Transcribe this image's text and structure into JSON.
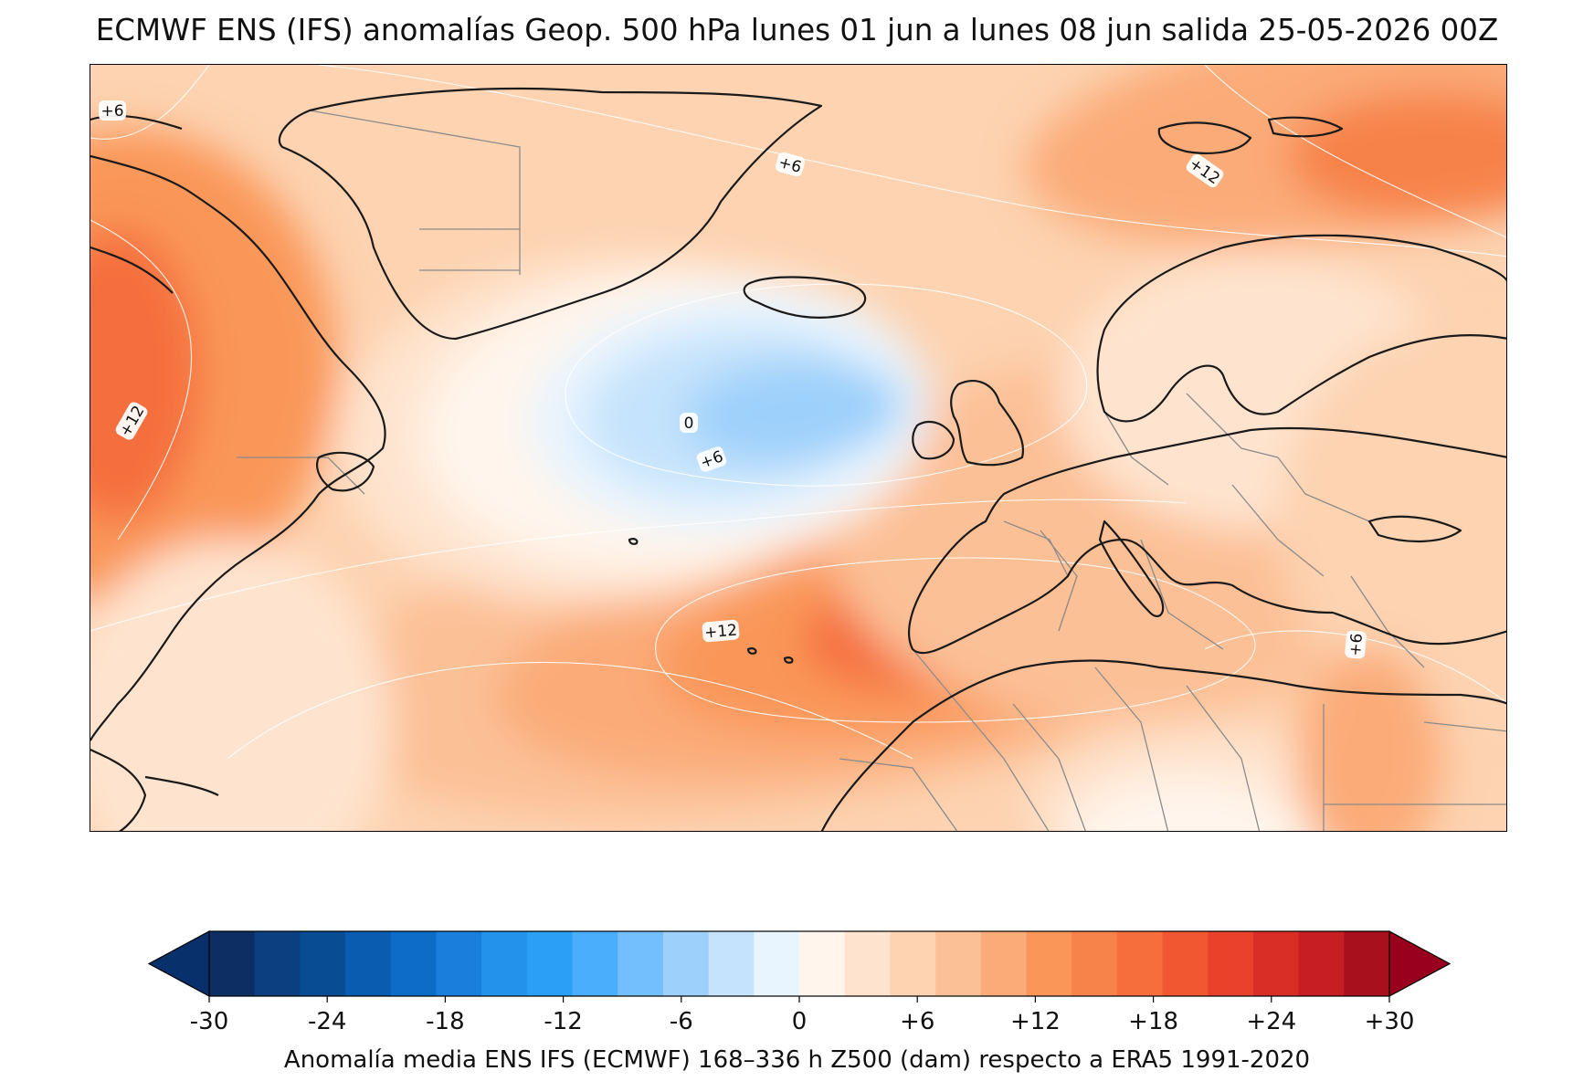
{
  "title": "ECMWF ENS (IFS) anomalías Geop. 500 hPa lunes 01 jun a lunes 08 jun salida 25-05-2026 00Z",
  "map": {
    "contour_labels": [
      "+6",
      "+12",
      "+6",
      "+12",
      "+12",
      "0",
      "+6",
      "+12",
      "+6"
    ],
    "colors": {
      "ocean_base": "#fdd3b1",
      "land_line": "#1a1a1a",
      "border_line": "#8a8a8a",
      "contour_line": "#ffffff"
    }
  },
  "colorbar": {
    "min": -30,
    "max": 30,
    "step": 3,
    "extend": "both",
    "tick_labels": [
      "-30",
      "-24",
      "-18",
      "-12",
      "-6",
      "0",
      "+6",
      "+12",
      "+18",
      "+24",
      "+30"
    ],
    "colors": [
      "#08306b",
      "#0d2e63",
      "#0a3f80",
      "#084c94",
      "#0a5cb0",
      "#0e6cc9",
      "#1a7fdc",
      "#2292ea",
      "#2b9ef5",
      "#4aaefc",
      "#73befc",
      "#9dd0fb",
      "#c5e3fc",
      "#e8f4fe",
      "#fff5ec",
      "#fee4cf",
      "#fdd3b1",
      "#fcc096",
      "#fbab78",
      "#fa9658",
      "#f7824a",
      "#f56e3c",
      "#f15832",
      "#e8432a",
      "#d92e26",
      "#c61e22",
      "#a8101d",
      "#99001d"
    ],
    "caption": "Anomalía media ENS IFS (ECMWF) 168–336 h Z500 (dam) respecto a ERA5 1991-2020"
  }
}
